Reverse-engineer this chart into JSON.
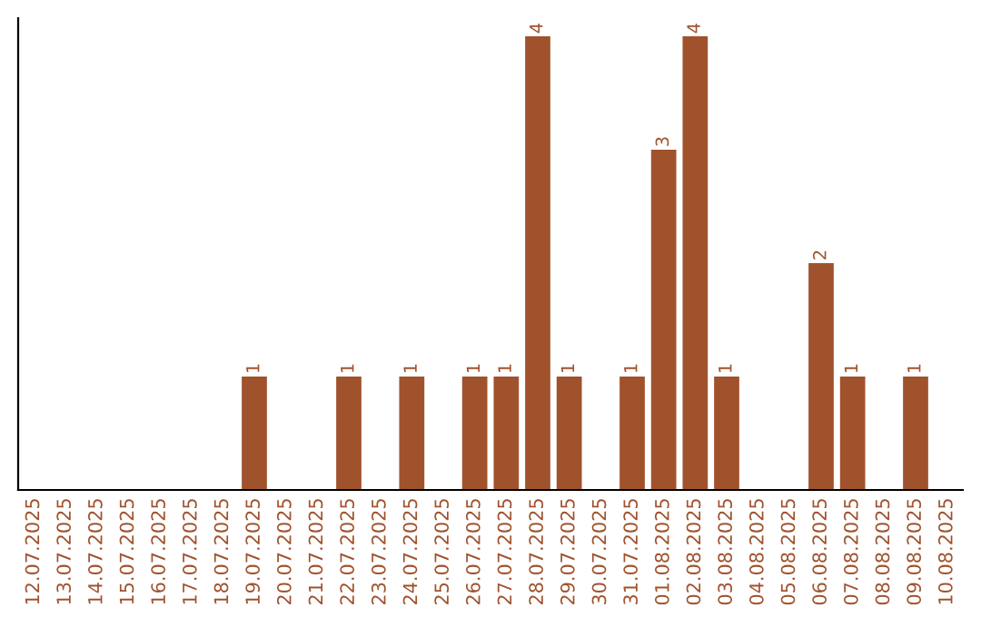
{
  "chart_data": {
    "type": "bar",
    "categories": [
      "12.07.2025",
      "13.07.2025",
      "14.07.2025",
      "15.07.2025",
      "16.07.2025",
      "17.07.2025",
      "18.07.2025",
      "19.07.2025",
      "20.07.2025",
      "21.07.2025",
      "22.07.2025",
      "23.07.2025",
      "24.07.2025",
      "25.07.2025",
      "26.07.2025",
      "27.07.2025",
      "28.07.2025",
      "29.07.2025",
      "30.07.2025",
      "31.07.2025",
      "01.08.2025",
      "02.08.2025",
      "03.08.2025",
      "04.08.2025",
      "05.08.2025",
      "06.08.2025",
      "07.08.2025",
      "08.08.2025",
      "09.08.2025",
      "10.08.2025"
    ],
    "values": [
      0,
      0,
      0,
      0,
      0,
      0,
      0,
      1,
      0,
      0,
      1,
      0,
      1,
      0,
      1,
      1,
      4,
      1,
      0,
      1,
      3,
      4,
      1,
      0,
      0,
      2,
      1,
      0,
      1,
      0
    ],
    "value_labels": [
      null,
      null,
      null,
      null,
      null,
      null,
      null,
      "1",
      null,
      null,
      "1",
      null,
      "1",
      null,
      "1",
      "1",
      "4",
      "1",
      null,
      "1",
      "3",
      "4",
      "1",
      null,
      null,
      "2",
      "1",
      null,
      "1",
      null
    ],
    "color": "#a0522d",
    "ylim": [
      0,
      4.16
    ],
    "tick_labels": "x",
    "grid": false,
    "legend": false
  }
}
